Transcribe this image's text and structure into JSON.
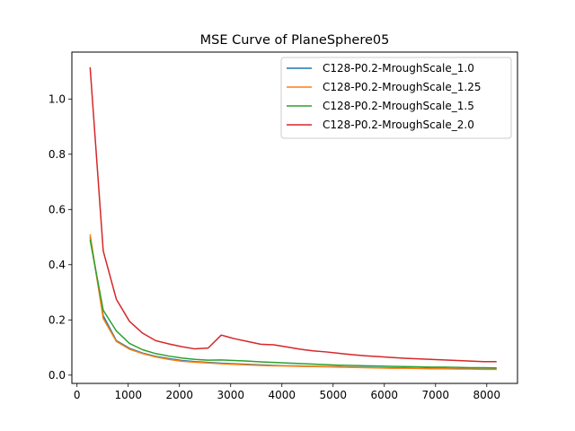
{
  "chart_data": {
    "type": "line",
    "title": "MSE Curve of PlaneSphere05",
    "xlabel": "",
    "ylabel": "",
    "xlim": [
      -100,
      8600
    ],
    "ylim": [
      -0.03,
      1.17
    ],
    "xticks": [
      "0",
      "1000",
      "2000",
      "3000",
      "4000",
      "5000",
      "6000",
      "7000",
      "8000"
    ],
    "yticks": [
      "0.0",
      "0.2",
      "0.4",
      "0.6",
      "0.8",
      "1.0"
    ],
    "grid": false,
    "legend_position": "top-right",
    "x": [
      256,
      512,
      768,
      1024,
      1280,
      1536,
      1792,
      2048,
      2304,
      2560,
      2816,
      3072,
      3328,
      3584,
      3840,
      4096,
      4352,
      4608,
      4864,
      5120,
      5376,
      5632,
      5888,
      6144,
      6400,
      6656,
      6912,
      7168,
      7424,
      7680,
      7936,
      8192
    ],
    "series": [
      {
        "name": "C128-P0.2-MroughScale_1.0",
        "color": "#1f77b4",
        "values": [
          0.5,
          0.215,
          0.125,
          0.097,
          0.08,
          0.068,
          0.06,
          0.053,
          0.049,
          0.046,
          0.043,
          0.041,
          0.039,
          0.037,
          0.035,
          0.034,
          0.033,
          0.032,
          0.031,
          0.03,
          0.029,
          0.028,
          0.027,
          0.026,
          0.026,
          0.025,
          0.024,
          0.024,
          0.023,
          0.023,
          0.022,
          0.022
        ]
      },
      {
        "name": "C128-P0.2-MroughScale_1.25",
        "color": "#ff7f0e",
        "values": [
          0.51,
          0.205,
          0.122,
          0.094,
          0.078,
          0.066,
          0.057,
          0.05,
          0.047,
          0.044,
          0.041,
          0.039,
          0.037,
          0.035,
          0.034,
          0.033,
          0.032,
          0.031,
          0.03,
          0.029,
          0.028,
          0.027,
          0.026,
          0.025,
          0.025,
          0.024,
          0.023,
          0.023,
          0.022,
          0.022,
          0.021,
          0.021
        ]
      },
      {
        "name": "C128-P0.2-MroughScale_1.5",
        "color": "#2ca02c",
        "values": [
          0.49,
          0.235,
          0.16,
          0.115,
          0.092,
          0.078,
          0.069,
          0.062,
          0.057,
          0.054,
          0.055,
          0.053,
          0.051,
          0.048,
          0.046,
          0.044,
          0.042,
          0.04,
          0.038,
          0.036,
          0.035,
          0.034,
          0.033,
          0.032,
          0.031,
          0.03,
          0.029,
          0.029,
          0.028,
          0.027,
          0.027,
          0.026
        ]
      },
      {
        "name": "C128-P0.2-MroughScale_2.0",
        "color": "#d62728",
        "values": [
          1.115,
          0.45,
          0.275,
          0.195,
          0.152,
          0.125,
          0.113,
          0.103,
          0.095,
          0.098,
          0.145,
          0.132,
          0.122,
          0.112,
          0.11,
          0.102,
          0.094,
          0.088,
          0.084,
          0.079,
          0.074,
          0.07,
          0.067,
          0.064,
          0.061,
          0.059,
          0.057,
          0.055,
          0.053,
          0.051,
          0.049,
          0.049
        ]
      }
    ]
  }
}
